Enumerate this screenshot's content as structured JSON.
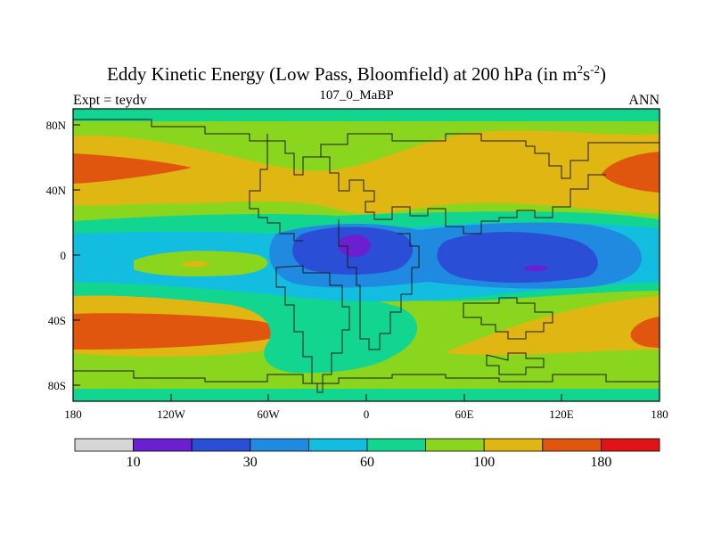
{
  "title": {
    "main": "Eddy Kinetic Energy (Low Pass, Bloomfield) at 200 hPa (in m",
    "sup1": "2",
    "mid": "s",
    "sup2": "-2",
    "end": ")"
  },
  "subtitles": {
    "left": "Expt = teydv",
    "center": "107_0_MaBP",
    "right": "ANN"
  },
  "map_data": {
    "type": "filled-contour",
    "variable": "Eddy Kinetic Energy",
    "level": "200 hPa",
    "units": "m2 s-2",
    "y_ticks": [
      "80N",
      "40N",
      "0",
      "40S",
      "80S"
    ],
    "x_ticks": [
      "180",
      "120W",
      "60W",
      "0",
      "60E",
      "120E",
      "180"
    ]
  },
  "colorbar": {
    "colors": [
      "#d6d6d6",
      "#6a1fd0",
      "#2a4fd6",
      "#1f8ae0",
      "#12bde0",
      "#12d690",
      "#8ad61f",
      "#e0b612",
      "#e0560f",
      "#e01414"
    ],
    "labels": [
      {
        "index": 1,
        "text": "10"
      },
      {
        "index": 3,
        "text": "30"
      },
      {
        "index": 5,
        "text": "60"
      },
      {
        "index": 7,
        "text": "100"
      },
      {
        "index": 9,
        "text": "180"
      }
    ]
  }
}
